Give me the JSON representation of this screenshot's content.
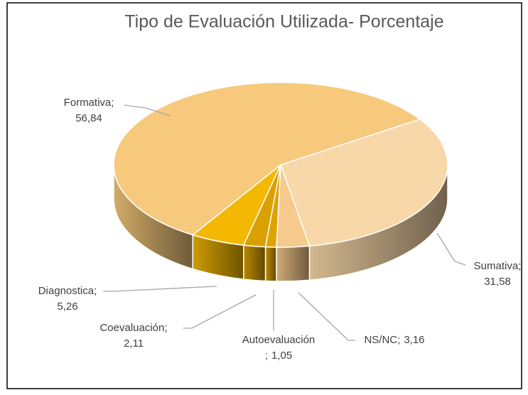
{
  "chart_data": {
    "type": "pie3d",
    "title": "Tipo  de Evaluación Utilizada- Porcentaje",
    "categories": [
      "Formativa",
      "Sumativa",
      "NS/NC",
      "Autoevaluación",
      "Coevaluación",
      "Diagnostica"
    ],
    "values": [
      56.84,
      31.58,
      3.16,
      1.05,
      2.11,
      5.26
    ],
    "value_labels": [
      "56,84",
      "31,58",
      "3,16",
      "1,05",
      "2,11",
      "5,26"
    ],
    "label_separator": ";",
    "colors": [
      "#f7c97c",
      "#f8d8a8",
      "#f6c98c",
      "#dea300",
      "#d9a000",
      "#f4b800"
    ]
  }
}
